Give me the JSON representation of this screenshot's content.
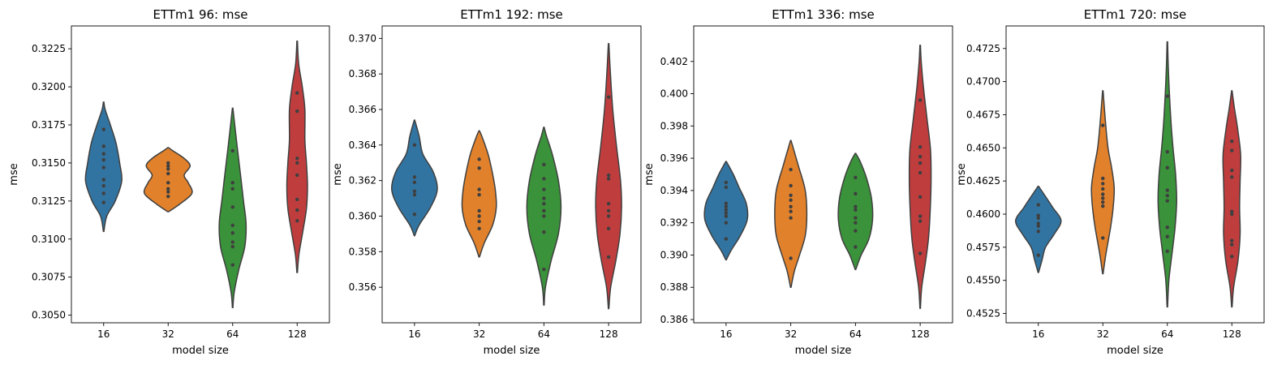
{
  "chart_data": [
    {
      "type": "violin",
      "title": "ETTm1 96: mse",
      "xlabel": "model size",
      "ylabel": "mse",
      "categories": [
        "16",
        "32",
        "64",
        "128"
      ],
      "ylim": [
        0.3045,
        0.324
      ],
      "yticks": [
        0.305,
        0.3075,
        0.31,
        0.3125,
        0.315,
        0.3175,
        0.32,
        0.3225
      ],
      "ytick_labels": [
        "0.3050",
        "0.3075",
        "0.3100",
        "0.3125",
        "0.3150",
        "0.3175",
        "0.3200",
        "0.3225"
      ],
      "colors": [
        "#3274a1",
        "#e1812c",
        "#3a923a",
        "#c03d3e"
      ],
      "violins": [
        {
          "min": 0.3105,
          "max": 0.319,
          "points": [
            0.3124,
            0.313,
            0.3135,
            0.3139,
            0.3147,
            0.3152,
            0.3156,
            0.3161,
            0.3172
          ],
          "profile": [
            [
              0.3105,
              0.01
            ],
            [
              0.3115,
              0.12
            ],
            [
              0.3125,
              0.45
            ],
            [
              0.3138,
              0.7
            ],
            [
              0.315,
              0.62
            ],
            [
              0.3163,
              0.48
            ],
            [
              0.3175,
              0.26
            ],
            [
              0.3185,
              0.06
            ],
            [
              0.319,
              0.01
            ]
          ]
        },
        {
          "min": 0.3118,
          "max": 0.316,
          "points": [
            0.3128,
            0.3131,
            0.3133,
            0.3137,
            0.3143,
            0.3146,
            0.3148,
            0.315
          ],
          "profile": [
            [
              0.3118,
              0.02
            ],
            [
              0.3123,
              0.45
            ],
            [
              0.313,
              0.92
            ],
            [
              0.3137,
              0.78
            ],
            [
              0.3142,
              0.62
            ],
            [
              0.3148,
              0.85
            ],
            [
              0.3153,
              0.62
            ],
            [
              0.3158,
              0.18
            ],
            [
              0.316,
              0.02
            ]
          ]
        },
        {
          "min": 0.3055,
          "max": 0.3186,
          "points": [
            0.3083,
            0.3095,
            0.3098,
            0.3104,
            0.3109,
            0.3121,
            0.3133,
            0.3137,
            0.3158
          ],
          "profile": [
            [
              0.3055,
              0.01
            ],
            [
              0.3065,
              0.06
            ],
            [
              0.308,
              0.24
            ],
            [
              0.3095,
              0.47
            ],
            [
              0.311,
              0.52
            ],
            [
              0.3125,
              0.42
            ],
            [
              0.314,
              0.32
            ],
            [
              0.316,
              0.18
            ],
            [
              0.3175,
              0.08
            ],
            [
              0.3186,
              0.01
            ]
          ]
        },
        {
          "min": 0.3078,
          "max": 0.323,
          "points": [
            0.3112,
            0.3119,
            0.3126,
            0.3142,
            0.315,
            0.3153,
            0.3184,
            0.3196
          ],
          "profile": [
            [
              0.3078,
              0.01
            ],
            [
              0.309,
              0.07
            ],
            [
              0.3105,
              0.22
            ],
            [
              0.312,
              0.36
            ],
            [
              0.3135,
              0.4
            ],
            [
              0.315,
              0.36
            ],
            [
              0.3165,
              0.3
            ],
            [
              0.3185,
              0.3
            ],
            [
              0.32,
              0.2
            ],
            [
              0.3215,
              0.06
            ],
            [
              0.323,
              0.01
            ]
          ]
        }
      ]
    },
    {
      "type": "violin",
      "title": "ETTm1 192: mse",
      "xlabel": "model size",
      "ylabel": "mse",
      "categories": [
        "16",
        "32",
        "64",
        "128"
      ],
      "ylim": [
        0.354,
        0.3707
      ],
      "yticks": [
        0.356,
        0.358,
        0.36,
        0.362,
        0.364,
        0.366,
        0.368,
        0.37
      ],
      "ytick_labels": [
        "0.356",
        "0.358",
        "0.360",
        "0.362",
        "0.364",
        "0.366",
        "0.368",
        "0.370"
      ],
      "colors": [
        "#3274a1",
        "#e1812c",
        "#3a923a",
        "#c03d3e"
      ],
      "violins": [
        {
          "min": 0.3589,
          "max": 0.3654,
          "points": [
            0.3601,
            0.3612,
            0.3614,
            0.3619,
            0.3622,
            0.364
          ],
          "profile": [
            [
              0.3589,
              0.01
            ],
            [
              0.3595,
              0.18
            ],
            [
              0.3605,
              0.62
            ],
            [
              0.3615,
              0.88
            ],
            [
              0.3625,
              0.72
            ],
            [
              0.3635,
              0.32
            ],
            [
              0.3645,
              0.18
            ],
            [
              0.3654,
              0.01
            ]
          ]
        },
        {
          "min": 0.3577,
          "max": 0.3648,
          "points": [
            0.3593,
            0.3597,
            0.36,
            0.3603,
            0.3612,
            0.3615,
            0.3627,
            0.3632
          ],
          "profile": [
            [
              0.3577,
              0.01
            ],
            [
              0.3585,
              0.2
            ],
            [
              0.3595,
              0.52
            ],
            [
              0.3605,
              0.66
            ],
            [
              0.3615,
              0.62
            ],
            [
              0.3625,
              0.5
            ],
            [
              0.3635,
              0.34
            ],
            [
              0.3645,
              0.1
            ],
            [
              0.3648,
              0.01
            ]
          ]
        },
        {
          "min": 0.355,
          "max": 0.365,
          "points": [
            0.357,
            0.3591,
            0.36,
            0.3603,
            0.3607,
            0.361,
            0.3615,
            0.3621,
            0.3629
          ],
          "profile": [
            [
              0.355,
              0.01
            ],
            [
              0.356,
              0.06
            ],
            [
              0.3575,
              0.28
            ],
            [
              0.359,
              0.56
            ],
            [
              0.3605,
              0.66
            ],
            [
              0.362,
              0.56
            ],
            [
              0.3635,
              0.32
            ],
            [
              0.3645,
              0.1
            ],
            [
              0.365,
              0.01
            ]
          ]
        },
        {
          "min": 0.3548,
          "max": 0.3697,
          "points": [
            0.3577,
            0.3593,
            0.36,
            0.3603,
            0.3607,
            0.3621,
            0.3623,
            0.3667
          ],
          "profile": [
            [
              0.3548,
              0.01
            ],
            [
              0.356,
              0.08
            ],
            [
              0.3575,
              0.28
            ],
            [
              0.359,
              0.44
            ],
            [
              0.3605,
              0.5
            ],
            [
              0.362,
              0.46
            ],
            [
              0.364,
              0.3
            ],
            [
              0.366,
              0.16
            ],
            [
              0.368,
              0.07
            ],
            [
              0.3697,
              0.01
            ]
          ]
        }
      ]
    },
    {
      "type": "violin",
      "title": "ETTm1 336: mse",
      "xlabel": "model size",
      "ylabel": "mse",
      "categories": [
        "16",
        "32",
        "64",
        "128"
      ],
      "ylim": [
        0.3858,
        0.4042
      ],
      "yticks": [
        0.386,
        0.388,
        0.39,
        0.392,
        0.394,
        0.396,
        0.398,
        0.4,
        0.402
      ],
      "ytick_labels": [
        "0.386",
        "0.388",
        "0.390",
        "0.392",
        "0.394",
        "0.396",
        "0.398",
        "0.400",
        "0.402"
      ],
      "colors": [
        "#3274a1",
        "#e1812c",
        "#3a923a",
        "#c03d3e"
      ],
      "violins": [
        {
          "min": 0.3897,
          "max": 0.3958,
          "points": [
            0.391,
            0.392,
            0.3924,
            0.3926,
            0.3928,
            0.393,
            0.3932,
            0.3942,
            0.3945
          ],
          "profile": [
            [
              0.3897,
              0.01
            ],
            [
              0.3903,
              0.2
            ],
            [
              0.3912,
              0.55
            ],
            [
              0.3922,
              0.82
            ],
            [
              0.3932,
              0.78
            ],
            [
              0.3942,
              0.5
            ],
            [
              0.395,
              0.28
            ],
            [
              0.3958,
              0.01
            ]
          ]
        },
        {
          "min": 0.388,
          "max": 0.3971,
          "points": [
            0.3898,
            0.3923,
            0.3927,
            0.393,
            0.3934,
            0.3937,
            0.3943,
            0.3953
          ],
          "profile": [
            [
              0.388,
              0.01
            ],
            [
              0.389,
              0.14
            ],
            [
              0.39,
              0.34
            ],
            [
              0.3912,
              0.56
            ],
            [
              0.3925,
              0.62
            ],
            [
              0.394,
              0.56
            ],
            [
              0.3955,
              0.3
            ],
            [
              0.3965,
              0.12
            ],
            [
              0.3971,
              0.01
            ]
          ]
        },
        {
          "min": 0.3891,
          "max": 0.3963,
          "points": [
            0.3905,
            0.3915,
            0.392,
            0.3923,
            0.3928,
            0.393,
            0.3938,
            0.3948
          ],
          "profile": [
            [
              0.3891,
              0.01
            ],
            [
              0.39,
              0.22
            ],
            [
              0.391,
              0.52
            ],
            [
              0.3922,
              0.66
            ],
            [
              0.3935,
              0.62
            ],
            [
              0.3948,
              0.42
            ],
            [
              0.3958,
              0.18
            ],
            [
              0.3963,
              0.01
            ]
          ]
        },
        {
          "min": 0.3867,
          "max": 0.403,
          "points": [
            0.3901,
            0.3921,
            0.3924,
            0.3936,
            0.3951,
            0.3957,
            0.3961,
            0.3967,
            0.3996
          ],
          "profile": [
            [
              0.3867,
              0.01
            ],
            [
              0.388,
              0.06
            ],
            [
              0.3895,
              0.2
            ],
            [
              0.391,
              0.32
            ],
            [
              0.3925,
              0.38
            ],
            [
              0.3945,
              0.42
            ],
            [
              0.3965,
              0.4
            ],
            [
              0.3985,
              0.26
            ],
            [
              0.4005,
              0.12
            ],
            [
              0.402,
              0.04
            ],
            [
              0.403,
              0.01
            ]
          ]
        }
      ]
    },
    {
      "type": "violin",
      "title": "ETTm1 720: mse",
      "xlabel": "model size",
      "ylabel": "mse",
      "categories": [
        "16",
        "32",
        "64",
        "128"
      ],
      "ylim": [
        0.4518,
        0.4742
      ],
      "yticks": [
        0.4525,
        0.455,
        0.4575,
        0.46,
        0.4625,
        0.465,
        0.4675,
        0.47,
        0.4725
      ],
      "ytick_labels": [
        "0.4525",
        "0.4550",
        "0.4575",
        "0.4600",
        "0.4625",
        "0.4650",
        "0.4675",
        "0.4700",
        "0.4725"
      ],
      "colors": [
        "#3274a1",
        "#e1812c",
        "#3a923a",
        "#c03d3e"
      ],
      "violins": [
        {
          "min": 0.4556,
          "max": 0.4621,
          "points": [
            0.4569,
            0.4587,
            0.4591,
            0.4593,
            0.4597,
            0.4599,
            0.4607
          ],
          "profile": [
            [
              0.4556,
              0.01
            ],
            [
              0.4565,
              0.14
            ],
            [
              0.4575,
              0.28
            ],
            [
              0.4585,
              0.62
            ],
            [
              0.4595,
              0.88
            ],
            [
              0.4605,
              0.56
            ],
            [
              0.4615,
              0.22
            ],
            [
              0.4621,
              0.01
            ]
          ]
        },
        {
          "min": 0.4555,
          "max": 0.4693,
          "points": [
            0.4582,
            0.4606,
            0.4609,
            0.4612,
            0.4615,
            0.4619,
            0.4623,
            0.4627,
            0.4667
          ],
          "profile": [
            [
              0.4555,
              0.01
            ],
            [
              0.457,
              0.12
            ],
            [
              0.459,
              0.3
            ],
            [
              0.4605,
              0.4
            ],
            [
              0.462,
              0.44
            ],
            [
              0.4635,
              0.34
            ],
            [
              0.465,
              0.2
            ],
            [
              0.467,
              0.1
            ],
            [
              0.4693,
              0.01
            ]
          ]
        },
        {
          "min": 0.453,
          "max": 0.473,
          "points": [
            0.4572,
            0.4583,
            0.459,
            0.461,
            0.4614,
            0.4618,
            0.4635,
            0.4647,
            0.4689
          ],
          "profile": [
            [
              0.453,
              0.01
            ],
            [
              0.455,
              0.06
            ],
            [
              0.457,
              0.18
            ],
            [
              0.459,
              0.3
            ],
            [
              0.461,
              0.36
            ],
            [
              0.463,
              0.32
            ],
            [
              0.465,
              0.22
            ],
            [
              0.467,
              0.14
            ],
            [
              0.4695,
              0.07
            ],
            [
              0.4715,
              0.03
            ],
            [
              0.473,
              0.01
            ]
          ]
        },
        {
          "min": 0.453,
          "max": 0.4693,
          "points": [
            0.4568,
            0.4577,
            0.458,
            0.46,
            0.4602,
            0.4628,
            0.4633,
            0.4648,
            0.4655
          ],
          "profile": [
            [
              0.453,
              0.01
            ],
            [
              0.4545,
              0.07
            ],
            [
              0.4565,
              0.24
            ],
            [
              0.4585,
              0.32
            ],
            [
              0.4605,
              0.3
            ],
            [
              0.4625,
              0.32
            ],
            [
              0.4645,
              0.34
            ],
            [
              0.4665,
              0.22
            ],
            [
              0.468,
              0.1
            ],
            [
              0.4693,
              0.01
            ]
          ]
        }
      ]
    }
  ]
}
